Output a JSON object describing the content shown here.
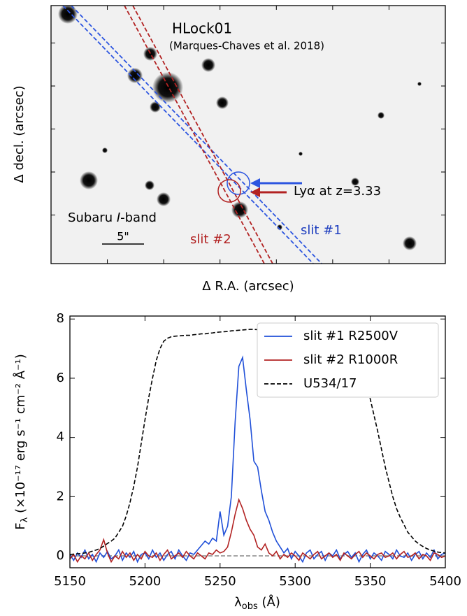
{
  "image_panel": {
    "title": "HLock01",
    "subtitle": "(Marques-Chaves et al. 2018)",
    "annotation": "Lyα at z=3.33",
    "band_label": {
      "prefix": "Subaru ",
      "band": "I",
      "suffix": "-band"
    },
    "scale_label": "5\"",
    "slit_labels": [
      "slit #2",
      "slit #1"
    ],
    "xlabel": "Δ R.A. (arcsec)",
    "ylabel": "Δ decl. (arcsec)"
  },
  "chart_data": {
    "type": "line",
    "xlabel": {
      "symbol": "λ",
      "subscript": "obs",
      "unit": " (Å)"
    },
    "ylabel": {
      "symbol": "F",
      "subscript": "λ",
      "unit": " (×10⁻¹⁷ erg s⁻¹ cm⁻² Å⁻¹)"
    },
    "x": [
      5150,
      5152.5,
      5155,
      5157.5,
      5160,
      5162.5,
      5165,
      5167.5,
      5170,
      5172.5,
      5175,
      5177.5,
      5180,
      5182.5,
      5185,
      5187.5,
      5190,
      5192.5,
      5195,
      5197.5,
      5200,
      5202.5,
      5205,
      5207.5,
      5210,
      5212.5,
      5215,
      5217.5,
      5220,
      5222.5,
      5225,
      5227.5,
      5230,
      5232.5,
      5235,
      5237.5,
      5240,
      5242.5,
      5245,
      5247.5,
      5250,
      5252.5,
      5255,
      5257.5,
      5260,
      5262.5,
      5265,
      5267.5,
      5270,
      5272.5,
      5275,
      5277.5,
      5280,
      5282.5,
      5285,
      5287.5,
      5290,
      5292.5,
      5295,
      5297.5,
      5300,
      5302.5,
      5305,
      5307.5,
      5310,
      5312.5,
      5315,
      5317.5,
      5320,
      5322.5,
      5325,
      5327.5,
      5330,
      5332.5,
      5335,
      5337.5,
      5340,
      5342.5,
      5345,
      5347.5,
      5350,
      5352.5,
      5355,
      5357.5,
      5360,
      5362.5,
      5365,
      5367.5,
      5370,
      5372.5,
      5375,
      5377.5,
      5380,
      5382.5,
      5385,
      5387.5,
      5390,
      5392.5,
      5395,
      5397.5,
      5400
    ],
    "series": [
      {
        "name": "slit #1 R2500V",
        "color": "#1f4fd8",
        "style": "solid",
        "values": [
          0.05,
          -0.15,
          0.1,
          -0.05,
          0.2,
          -0.1,
          0.05,
          -0.2,
          0.1,
          -0.05,
          0.15,
          -0.1,
          0.0,
          0.2,
          -0.15,
          0.1,
          -0.05,
          0.15,
          -0.2,
          0.05,
          0.1,
          -0.1,
          0.2,
          -0.05,
          0.1,
          -0.15,
          0.05,
          0.15,
          -0.1,
          0.2,
          0.0,
          -0.15,
          0.1,
          0.05,
          0.2,
          0.35,
          0.5,
          0.4,
          0.6,
          0.5,
          1.5,
          0.7,
          1.0,
          2.0,
          4.5,
          6.4,
          6.7,
          5.6,
          4.6,
          3.2,
          3.0,
          2.2,
          1.5,
          1.2,
          0.8,
          0.5,
          0.3,
          0.1,
          0.25,
          -0.1,
          0.15,
          0.0,
          -0.2,
          0.1,
          0.2,
          -0.1,
          0.05,
          0.15,
          -0.15,
          0.1,
          0.0,
          0.2,
          -0.1,
          0.05,
          0.15,
          -0.05,
          0.1,
          -0.2,
          0.05,
          0.2,
          -0.1,
          0.1,
          0.0,
          -0.15,
          0.15,
          0.05,
          -0.1,
          0.2,
          0.0,
          -0.05,
          0.1,
          -0.15,
          0.05,
          0.15,
          -0.1,
          0.1,
          -0.05,
          0.2,
          -0.1,
          0.05,
          0.1
        ]
      },
      {
        "name": "slit #2 R1000R",
        "color": "#b22222",
        "style": "solid",
        "values": [
          -0.1,
          0.05,
          -0.2,
          0.0,
          -0.1,
          0.1,
          -0.15,
          0.05,
          0.2,
          0.55,
          0.1,
          -0.2,
          0.0,
          -0.1,
          0.15,
          -0.05,
          0.1,
          -0.15,
          0.05,
          -0.1,
          0.15,
          0.0,
          -0.05,
          0.1,
          -0.15,
          0.05,
          0.2,
          -0.1,
          0.0,
          0.1,
          -0.05,
          0.15,
          0.0,
          -0.1,
          0.1,
          0.0,
          -0.1,
          0.1,
          0.05,
          0.2,
          0.1,
          0.15,
          0.3,
          0.8,
          1.4,
          1.9,
          1.6,
          1.2,
          0.9,
          0.7,
          0.3,
          0.2,
          0.4,
          0.1,
          0.0,
          0.15,
          -0.1,
          0.05,
          -0.05,
          0.1,
          0.0,
          -0.15,
          0.1,
          0.0,
          -0.1,
          0.05,
          0.15,
          -0.1,
          0.0,
          0.1,
          -0.05,
          0.05,
          -0.15,
          0.1,
          0.0,
          -0.1,
          0.05,
          0.15,
          -0.05,
          0.1,
          0.0,
          -0.1,
          0.05,
          0.1,
          -0.05,
          0.0,
          0.1,
          -0.1,
          0.05,
          0.15,
          -0.05,
          0.0,
          0.1,
          -0.1,
          0.05,
          0.0,
          -0.15,
          0.1,
          0.05,
          -0.05,
          0.0
        ]
      },
      {
        "name": "U534/17",
        "color": "#000000",
        "style": "dashed",
        "values": [
          0.05,
          0.06,
          0.07,
          0.08,
          0.1,
          0.12,
          0.16,
          0.2,
          0.25,
          0.33,
          0.42,
          0.5,
          0.6,
          0.8,
          1.0,
          1.35,
          1.8,
          2.35,
          3.0,
          3.8,
          4.6,
          5.35,
          6.0,
          6.6,
          7.0,
          7.25,
          7.35,
          7.4,
          7.42,
          7.43,
          7.44,
          7.45,
          7.45,
          7.47,
          7.48,
          7.5,
          7.5,
          7.52,
          7.53,
          7.55,
          7.56,
          7.57,
          7.58,
          7.6,
          7.61,
          7.62,
          7.63,
          7.64,
          7.65,
          7.65,
          7.64,
          7.63,
          7.62,
          7.61,
          7.6,
          7.58,
          7.56,
          7.53,
          7.52,
          7.5,
          7.5,
          7.47,
          7.44,
          7.42,
          7.4,
          7.37,
          7.35,
          7.32,
          7.3,
          7.25,
          7.2,
          7.15,
          7.1,
          7.0,
          6.95,
          6.85,
          6.8,
          6.5,
          6.2,
          5.8,
          5.3,
          4.75,
          4.2,
          3.6,
          3.0,
          2.5,
          2.0,
          1.6,
          1.3,
          1.05,
          0.8,
          0.65,
          0.5,
          0.4,
          0.32,
          0.25,
          0.2,
          0.16,
          0.13,
          0.11,
          0.1
        ]
      }
    ],
    "hline": 0,
    "hline_color": "#888888",
    "xlim": [
      5150,
      5400
    ],
    "xticks": [
      5150,
      5200,
      5250,
      5300,
      5350,
      5400
    ],
    "ylim": [
      -0.4,
      8.1
    ],
    "yticks": [
      0,
      2,
      4,
      6,
      8
    ],
    "legend": "upper right"
  }
}
